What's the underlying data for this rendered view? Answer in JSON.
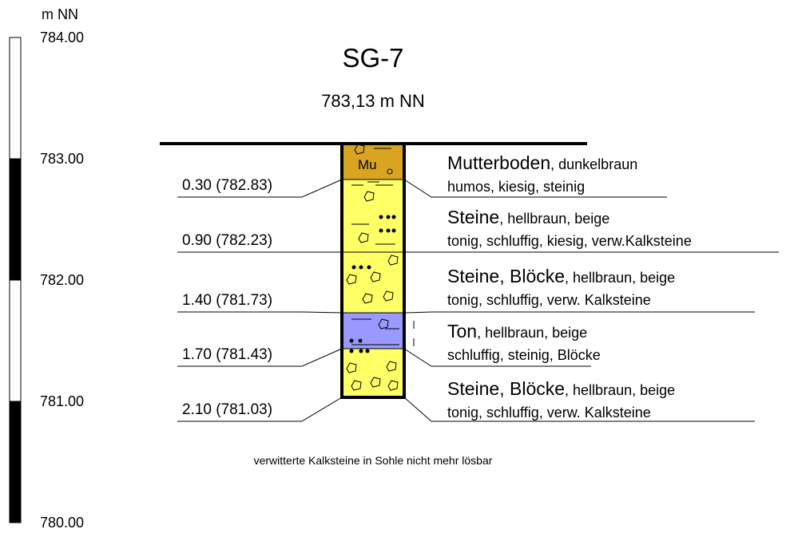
{
  "scale": {
    "unit": "m NN",
    "labels": [
      "784.00",
      "783.00",
      "782.00",
      "781.00",
      "780.00"
    ]
  },
  "title": "SG-7",
  "elevation": "783,13 m NN",
  "layers": [
    {
      "symbol": "Mu",
      "name": "Mutterboden",
      "attributes": ", dunkelbraun",
      "details": "humos, kiesig, steinig",
      "depth": "0.30 (782.83)"
    },
    {
      "name": "Steine",
      "attributes": ", hellbraun, beige",
      "details": "tonig, schluffig, kiesig, verw.Kalksteine",
      "depth": "0.90 (782.23)"
    },
    {
      "name": "Steine, Blöcke",
      "attributes": ", hellbraun, beige",
      "details": "tonig, schluffig, verw. Kalksteine",
      "depth": "1.40 (781.73)"
    },
    {
      "name": "Ton",
      "attributes": ", hellbraun, beige",
      "details": "schluffig, steinig, Blöcke",
      "depth": "1.70 (781.43)"
    },
    {
      "name": "Steine, Blöcke",
      "attributes": ", hellbraun, beige",
      "details": "tonig, schluffig, verw. Kalksteine",
      "depth": "2.10 (781.03)"
    }
  ],
  "note": "verwitterte Kalksteine in Sohle nicht mehr lösbar"
}
